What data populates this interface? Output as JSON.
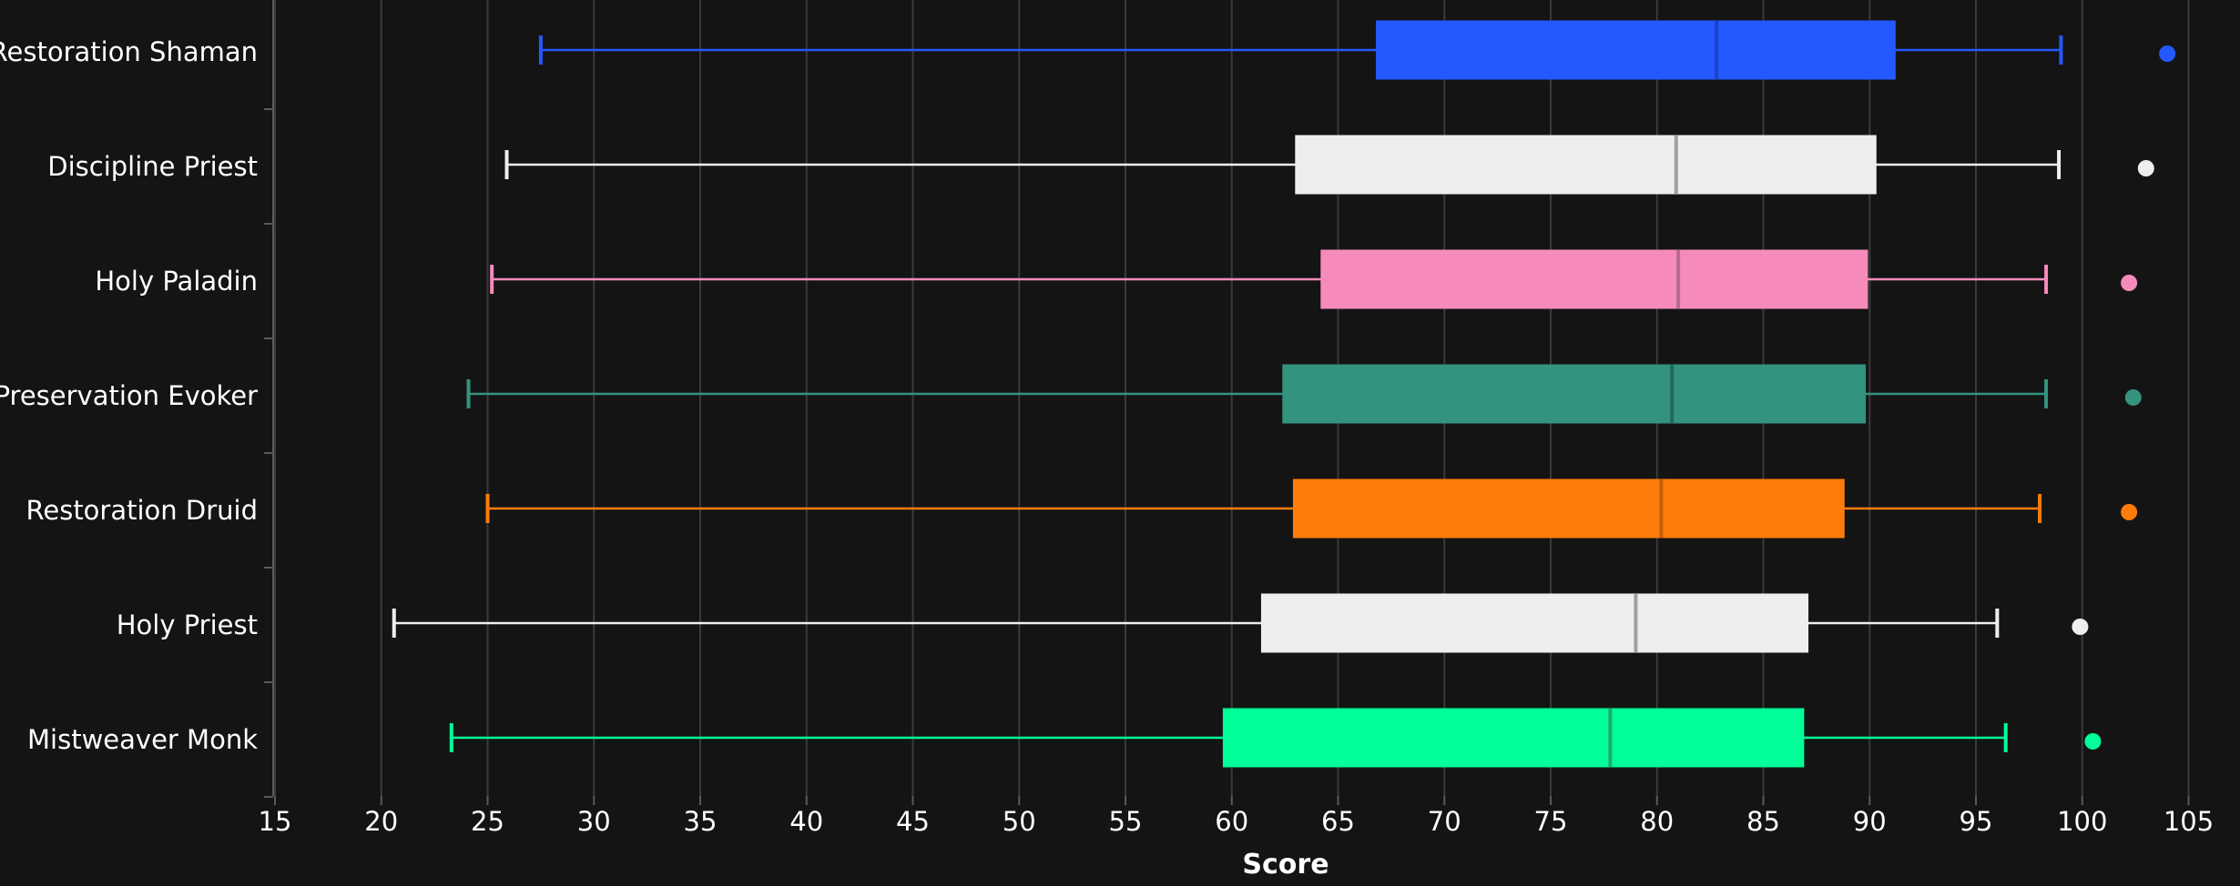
{
  "chart_data": {
    "type": "box",
    "xlabel": "Score",
    "xlim": [
      15,
      105
    ],
    "xticks": [
      15,
      20,
      25,
      30,
      35,
      40,
      45,
      50,
      55,
      60,
      65,
      70,
      75,
      80,
      85,
      90,
      95,
      100,
      105
    ],
    "grid": true,
    "background": "#141414",
    "categories": [
      "Restoration Shaman",
      "Discipline Priest",
      "Holy Paladin",
      "Preservation Evoker",
      "Restoration Druid",
      "Holy Priest",
      "Mistweaver Monk"
    ],
    "series": [
      {
        "category": "Restoration Shaman",
        "color": "#2459FF",
        "median_color": "#1A44C9",
        "whisker_low": 27.5,
        "q1": 66.8,
        "median": 82.8,
        "q3": 91.2,
        "whisker_high": 99.0,
        "outlier": 104.0
      },
      {
        "category": "Discipline Priest",
        "color": "#EEEEEE",
        "median_color": "#A0A0A0",
        "whisker_low": 25.9,
        "q1": 63.0,
        "median": 80.9,
        "q3": 90.3,
        "whisker_high": 98.9,
        "outlier": 103.0
      },
      {
        "category": "Holy Paladin",
        "color": "#F68BBB",
        "median_color": "#B86A8D",
        "whisker_low": 25.2,
        "q1": 64.2,
        "median": 81.0,
        "q3": 89.9,
        "whisker_high": 98.3,
        "outlier": 102.2
      },
      {
        "category": "Preservation Evoker",
        "color": "#33937F",
        "median_color": "#226B5C",
        "whisker_low": 24.1,
        "q1": 62.4,
        "median": 80.7,
        "q3": 89.8,
        "whisker_high": 98.3,
        "outlier": 102.4
      },
      {
        "category": "Restoration Druid",
        "color": "#FF7C0A",
        "median_color": "#C25E07",
        "whisker_low": 25.0,
        "q1": 62.9,
        "median": 80.2,
        "q3": 88.8,
        "whisker_high": 98.0,
        "outlier": 102.2
      },
      {
        "category": "Holy Priest",
        "color": "#EEEEEE",
        "median_color": "#A0A0A0",
        "whisker_low": 20.6,
        "q1": 61.4,
        "median": 79.0,
        "q3": 87.1,
        "whisker_high": 96.0,
        "outlier": 99.9
      },
      {
        "category": "Mistweaver Monk",
        "color": "#00FF98",
        "median_color": "#1FAA6E",
        "whisker_low": 23.3,
        "q1": 59.6,
        "median": 77.8,
        "q3": 86.9,
        "whisker_high": 96.4,
        "outlier": 100.5
      }
    ]
  }
}
